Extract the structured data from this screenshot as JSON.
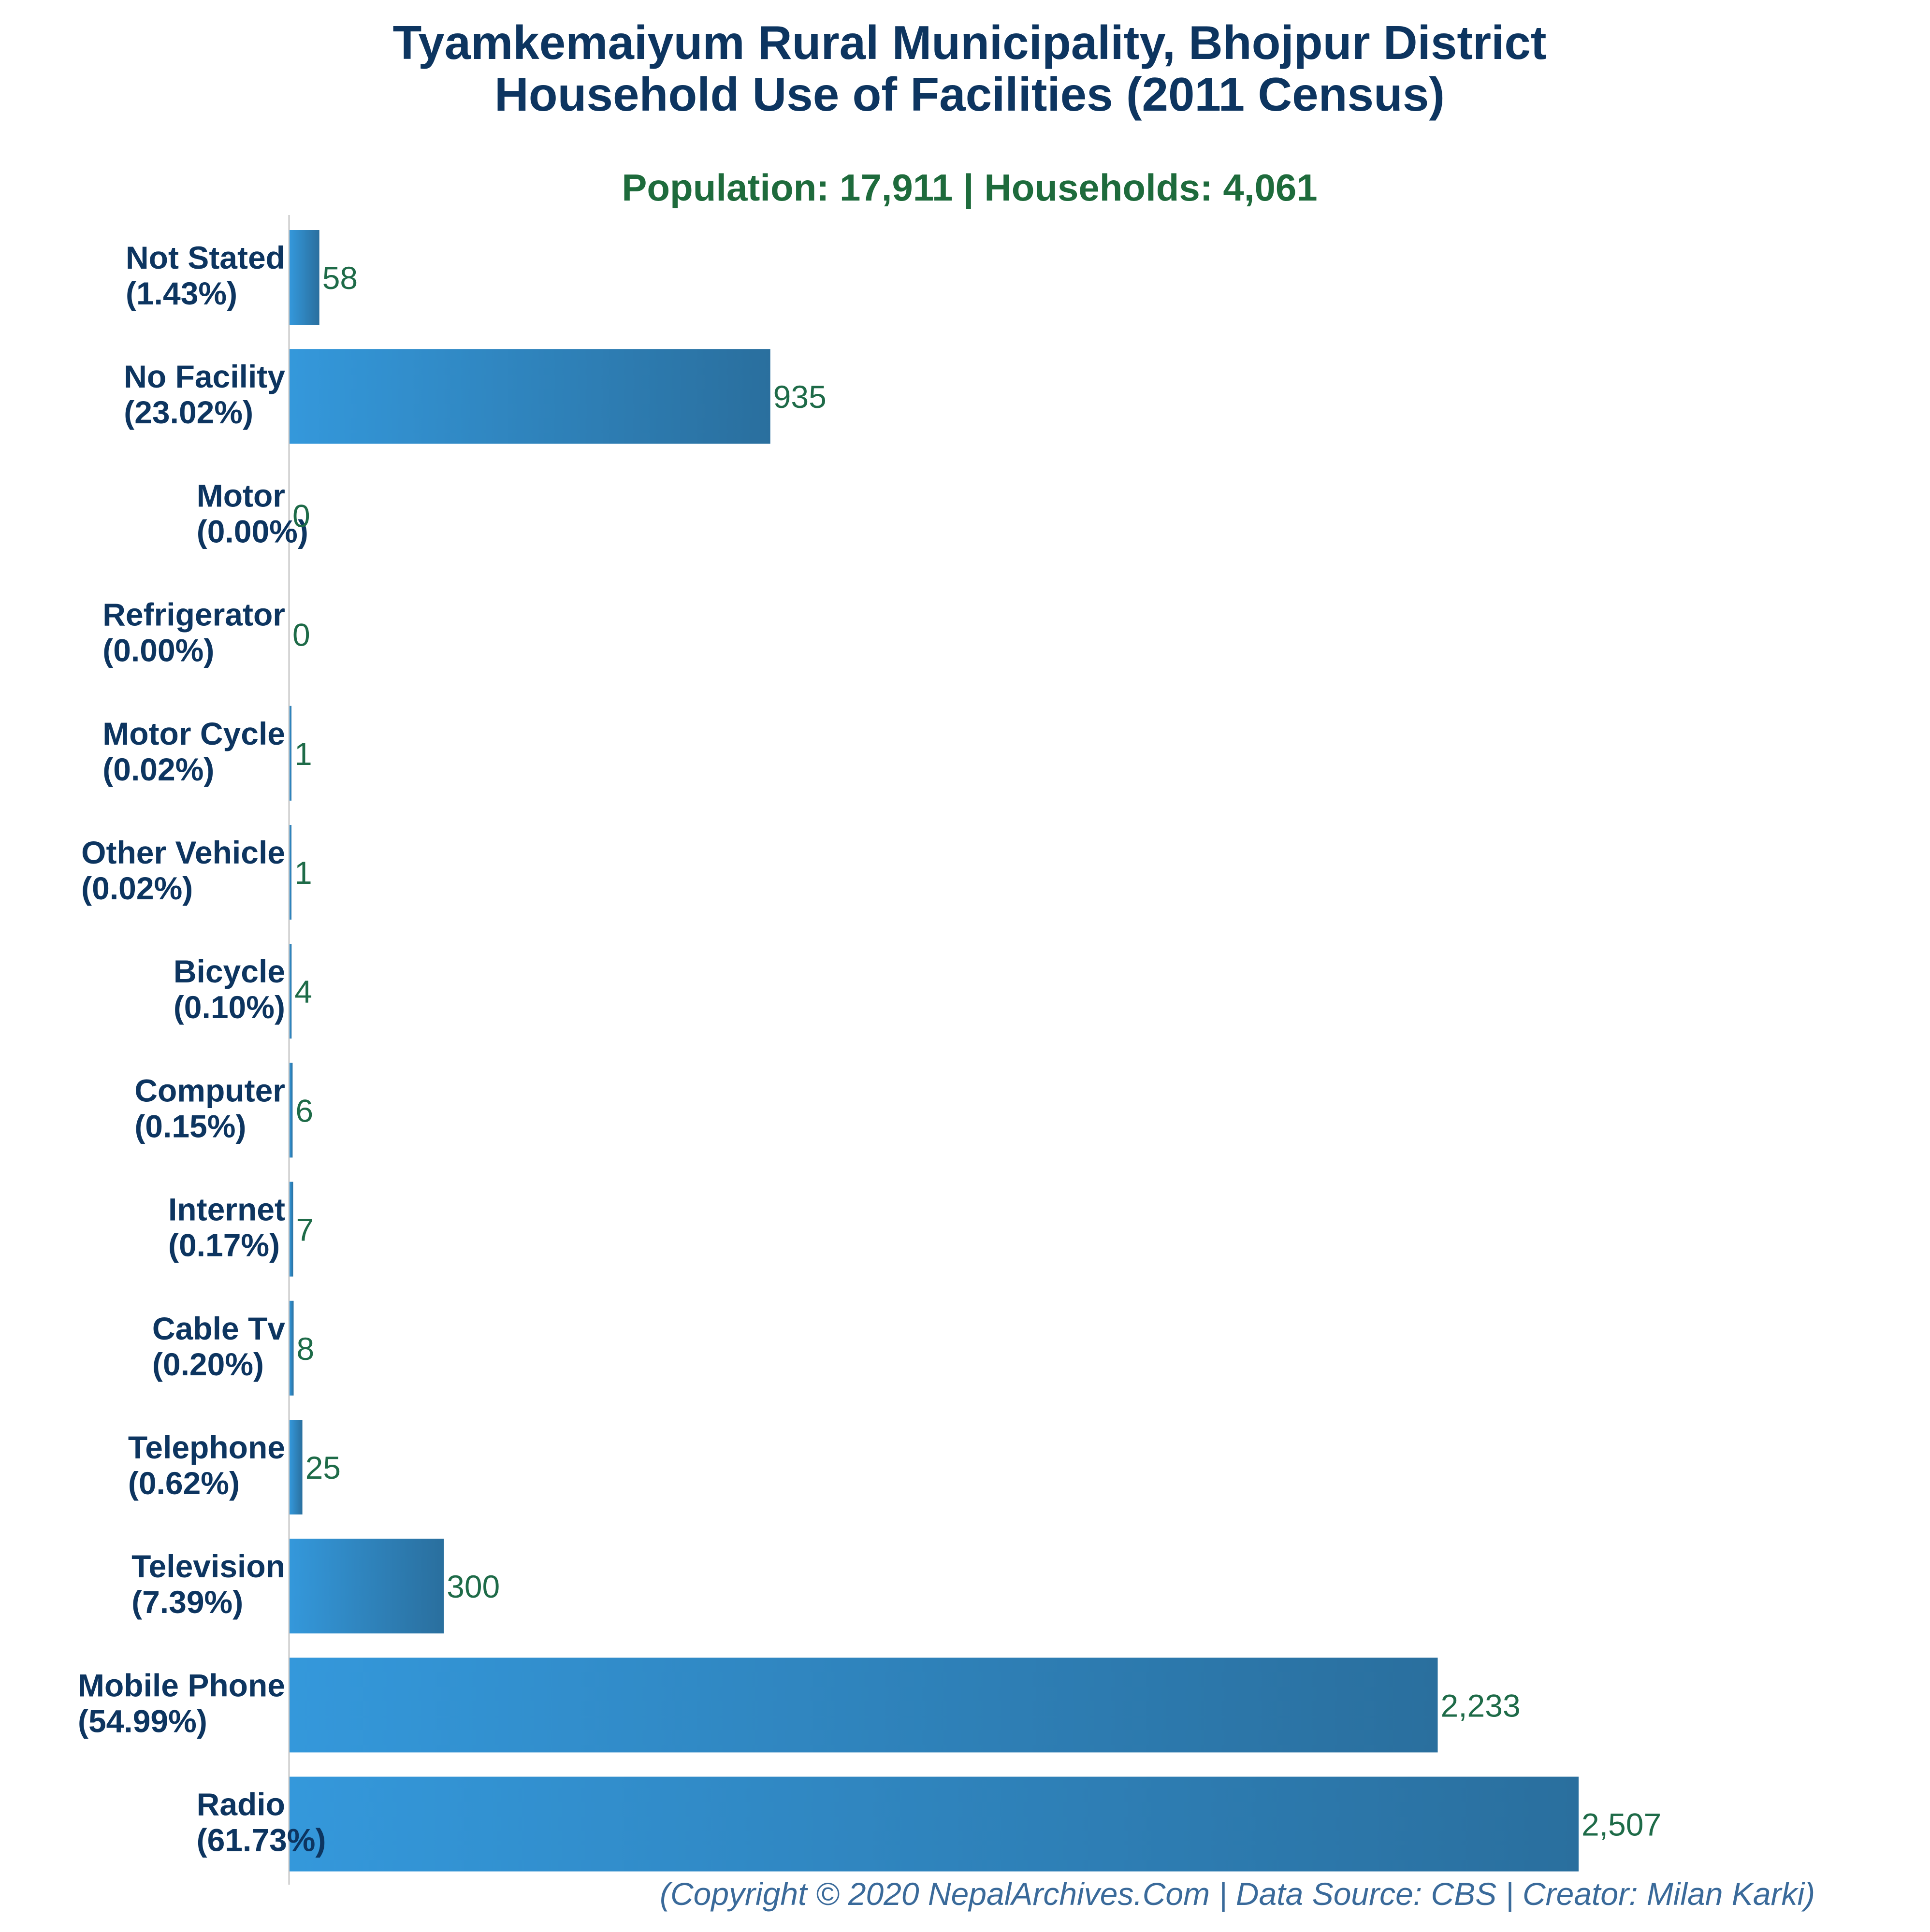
{
  "chart_data": {
    "type": "bar",
    "orientation": "horizontal",
    "title_line1": "Tyamkemaiyum Rural Municipality, Bhojpur District",
    "title_line2": "Household Use of Facilities (2011 Census)",
    "subtitle": "Population: 17,911 | Households: 4,061",
    "footer": "(Copyright © 2020 NepalArchives.Com | Data Source: CBS | Creator: Milan Karki)",
    "categories": [
      "Not Stated",
      "No Facility",
      "Motor",
      "Refrigerator",
      "Motor Cycle",
      "Other Vehicle",
      "Bicycle",
      "Computer",
      "Internet",
      "Cable Tv",
      "Telephone",
      "Television",
      "Mobile Phone",
      "Radio"
    ],
    "percent_labels": [
      "(1.43%)",
      "(23.02%)",
      "(0.00%)",
      "(0.00%)",
      "(0.02%)",
      "(0.02%)",
      "(0.10%)",
      "(0.15%)",
      "(0.17%)",
      "(0.20%)",
      "(0.62%)",
      "(7.39%)",
      "(54.99%)",
      "(61.73%)"
    ],
    "values": [
      58,
      935,
      0,
      0,
      1,
      1,
      4,
      6,
      7,
      8,
      25,
      300,
      2233,
      2507
    ],
    "value_labels": [
      "58",
      "935",
      "0",
      "0",
      "1",
      "1",
      "4",
      "6",
      "7",
      "8",
      "25",
      "300",
      "2,233",
      "2,507"
    ],
    "xlim": [
      0,
      2507
    ],
    "grid": false,
    "legend": "none",
    "colors": {
      "title": "#0d3560",
      "subtitle": "#1e6b3c",
      "category_label": "#0d3560",
      "value_label": "#1e6b48",
      "bar_light": "#3498db",
      "bar_dark": "#2a6f9e",
      "axis_line": "#c8c8c8",
      "footer": "#3a6a9a"
    }
  }
}
